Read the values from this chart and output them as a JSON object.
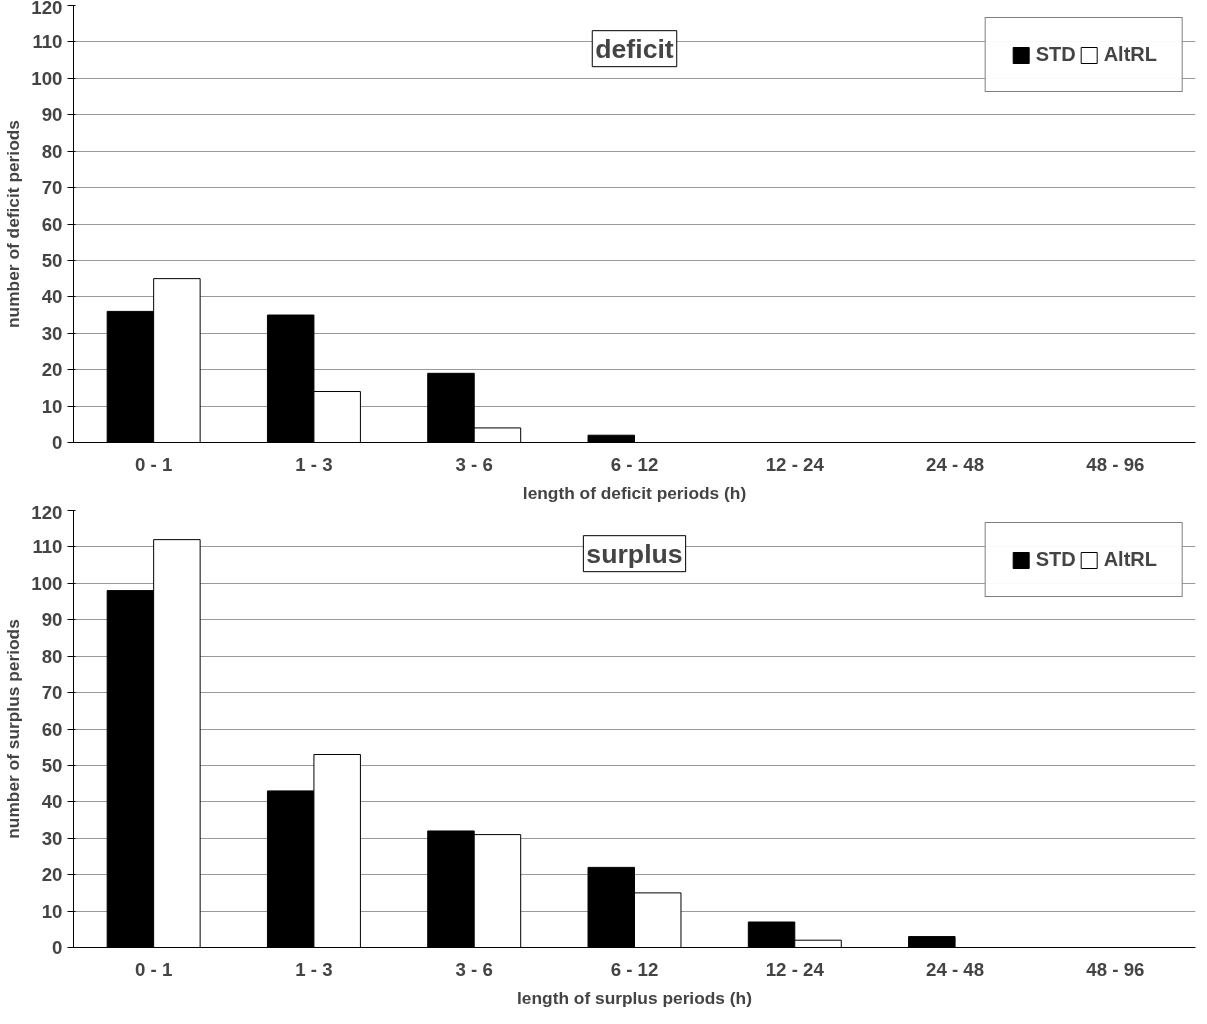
{
  "chart_data": [
    {
      "type": "bar",
      "title": "deficit",
      "xlabel": "length of deficit periods (h)",
      "ylabel": "number of deficit periods",
      "categories": [
        "0 - 1",
        "1 - 3",
        "3 - 6",
        "6 - 12",
        "12 - 24",
        "24 - 48",
        "48 - 96"
      ],
      "series": [
        {
          "name": "STD",
          "color": "#000000",
          "values": [
            36,
            35,
            19,
            2,
            0,
            0,
            0
          ]
        },
        {
          "name": "AltRL",
          "color": "#ffffff",
          "values": [
            45,
            14,
            4,
            0,
            0,
            0,
            0
          ]
        }
      ],
      "ylim": [
        0,
        120
      ],
      "yticks": [
        0,
        10,
        20,
        30,
        40,
        50,
        60,
        70,
        80,
        90,
        100,
        110,
        120
      ],
      "grid": "y",
      "legend": "top right"
    },
    {
      "type": "bar",
      "title": "surplus",
      "xlabel": "length of surplus periods (h)",
      "ylabel": "number of surplus periods",
      "categories": [
        "0 - 1",
        "1 - 3",
        "3 - 6",
        "6 - 12",
        "12 - 24",
        "24 - 48",
        "48 - 96"
      ],
      "series": [
        {
          "name": "STD",
          "color": "#000000",
          "values": [
            98,
            43,
            32,
            22,
            7,
            3,
            0
          ]
        },
        {
          "name": "AltRL",
          "color": "#ffffff",
          "values": [
            112,
            53,
            31,
            15,
            2,
            0,
            0
          ]
        }
      ],
      "ylim": [
        0,
        120
      ],
      "yticks": [
        0,
        10,
        20,
        30,
        40,
        50,
        60,
        70,
        80,
        90,
        100,
        110,
        120
      ],
      "grid": "y",
      "legend": "top right"
    }
  ]
}
